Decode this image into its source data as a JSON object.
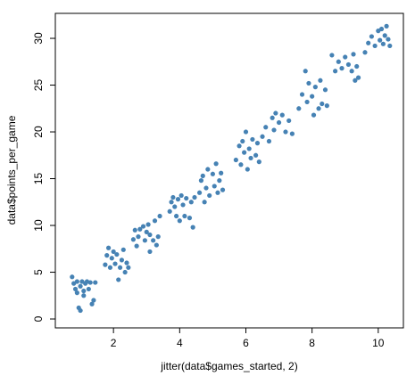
{
  "chart_data": {
    "type": "scatter",
    "xlabel": "jitter(data$games_started, 2)",
    "ylabel": "data$points_per_game",
    "color": "#4682b4",
    "xlim": [
      0.243,
      10.76
    ],
    "ylim": [
      -0.95,
      32.67
    ],
    "xticks": [
      2,
      4,
      6,
      8,
      10
    ],
    "yticks": [
      0,
      5,
      10,
      15,
      20,
      25,
      30
    ],
    "grid": false,
    "series": [
      {
        "name": null,
        "color": "#4682b4",
        "x": [
          0.75,
          0.8,
          0.85,
          0.9,
          0.95,
          1.0,
          1.0,
          1.05,
          1.1,
          1.15,
          1.2,
          1.25,
          1.3,
          1.35,
          1.4,
          1.45,
          0.9,
          1.1,
          1.75,
          1.8,
          1.85,
          1.9,
          1.95,
          2.0,
          2.05,
          2.1,
          2.15,
          2.2,
          2.25,
          2.3,
          2.35,
          2.4,
          2.45,
          2.6,
          2.65,
          2.7,
          2.75,
          2.8,
          2.9,
          2.95,
          3.0,
          3.05,
          3.1,
          3.2,
          3.25,
          3.3,
          3.35,
          3.4,
          3.1,
          3.7,
          3.75,
          3.8,
          3.85,
          3.9,
          3.95,
          4.0,
          4.05,
          4.1,
          4.15,
          4.2,
          4.3,
          4.35,
          4.4,
          4.45,
          4.6,
          4.65,
          4.7,
          4.75,
          4.8,
          4.85,
          4.9,
          5.0,
          5.05,
          5.1,
          5.15,
          5.2,
          5.25,
          5.3,
          5.7,
          5.8,
          5.85,
          5.9,
          5.95,
          6.0,
          6.05,
          6.1,
          6.15,
          6.2,
          6.3,
          6.35,
          6.4,
          6.5,
          6.6,
          6.7,
          6.8,
          6.85,
          6.9,
          7.0,
          7.1,
          7.2,
          7.3,
          7.4,
          7.6,
          7.7,
          7.8,
          7.85,
          7.9,
          8.0,
          8.05,
          8.1,
          8.2,
          8.25,
          8.3,
          8.4,
          8.45,
          8.6,
          8.7,
          8.8,
          8.9,
          9.0,
          9.1,
          9.2,
          9.25,
          9.3,
          9.35,
          9.4,
          9.6,
          9.7,
          9.8,
          9.9,
          10.0,
          10.05,
          10.1,
          10.15,
          10.2,
          10.25,
          10.3,
          10.35
        ],
        "values": [
          4.5,
          3.8,
          3.2,
          2.8,
          1.2,
          0.9,
          3.5,
          4.0,
          3.0,
          3.8,
          4.0,
          3.2,
          3.9,
          1.6,
          2.0,
          3.9,
          4.0,
          2.5,
          5.8,
          6.8,
          7.6,
          5.5,
          6.5,
          7.2,
          5.9,
          6.9,
          4.2,
          5.5,
          6.3,
          7.4,
          5.0,
          6.0,
          5.5,
          8.5,
          9.5,
          7.8,
          8.8,
          9.6,
          9.9,
          8.4,
          9.3,
          10.1,
          7.2,
          8.4,
          10.5,
          7.9,
          8.8,
          11.0,
          9.0,
          11.5,
          12.5,
          13.0,
          12.0,
          11.0,
          12.8,
          10.5,
          13.2,
          12.2,
          11.0,
          12.9,
          10.8,
          12.5,
          9.8,
          13.0,
          13.5,
          14.8,
          15.3,
          12.5,
          14.0,
          16.0,
          13.2,
          15.5,
          14.2,
          16.6,
          13.5,
          14.8,
          15.6,
          13.8,
          17.0,
          18.5,
          16.5,
          19.0,
          17.8,
          20.0,
          16.0,
          18.2,
          17.2,
          19.2,
          17.5,
          18.8,
          16.8,
          19.5,
          20.5,
          19.0,
          21.5,
          20.2,
          22.0,
          21.0,
          21.8,
          20.0,
          21.2,
          19.8,
          22.5,
          24.0,
          26.5,
          23.2,
          25.2,
          23.8,
          21.8,
          24.8,
          22.5,
          25.5,
          23.0,
          24.5,
          22.8,
          28.2,
          26.5,
          27.5,
          26.8,
          28.0,
          27.2,
          26.5,
          28.3,
          25.5,
          27.0,
          25.8,
          28.5,
          29.5,
          30.2,
          29.2,
          30.8,
          29.8,
          31.0,
          29.4,
          30.3,
          31.3,
          29.9,
          29.2
        ]
      }
    ]
  }
}
